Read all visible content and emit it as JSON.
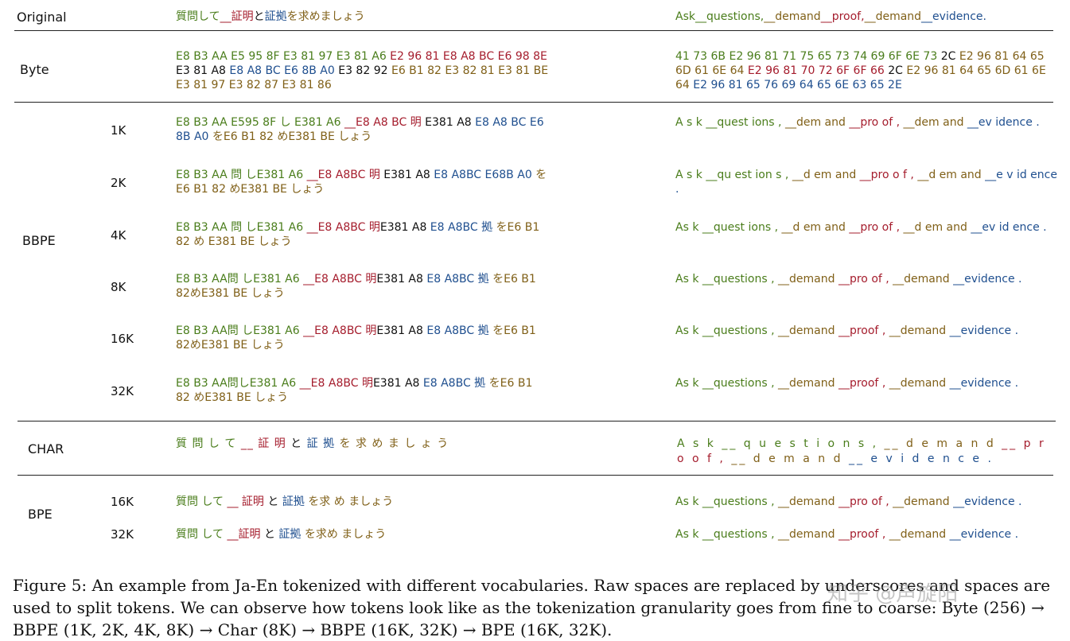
{
  "table": {
    "original_label": "Original",
    "original_ja": [
      {
        "text": "質問して",
        "c": "g"
      },
      {
        "text": "__証明",
        "c": "r"
      },
      {
        "text": "と",
        "c": "k"
      },
      {
        "text": "証拠",
        "c": "b"
      },
      {
        "text": "を求めましょう",
        "c": "o"
      }
    ],
    "original_en": [
      {
        "text": "Ask",
        "c": "g"
      },
      {
        "text": "__questions,",
        "c": "g"
      },
      {
        "text": "__demand",
        "c": "o"
      },
      {
        "text": "__proof,",
        "c": "r"
      },
      {
        "text": "__demand",
        "c": "o"
      },
      {
        "text": "__evidence.",
        "c": "b"
      }
    ],
    "byte_label": "Byte",
    "byte_ja": [
      {
        "text": "E8 B3 AA E5 95 8F E3 81 97 E3 81 A6 ",
        "c": "g"
      },
      {
        "text": "E2 96 81 E8 A8 BC E6 98 8E",
        "c": "r"
      },
      {
        "text": " E3 81 A8 ",
        "c": "k"
      },
      {
        "text": "E8 A8 BC E6 8B A0",
        "c": "b"
      },
      {
        "text": " E3 82 92 ",
        "c": "k"
      },
      {
        "text": "E6 B1 82 E3 82 81 E3 81 BE E3 81 97 E3 82 87 E3 81 86",
        "c": "o"
      }
    ],
    "byte_en": [
      {
        "text": "41 73 6B E2 96 81 71 75 65 73 74 69 6F 6E 73 ",
        "c": "g"
      },
      {
        "text": "2C ",
        "c": "k"
      },
      {
        "text": "E2 96 81 64 65 6D 61 6E 64 ",
        "c": "o"
      },
      {
        "text": "E2 96 81 70 72 6F 6F 66 ",
        "c": "r"
      },
      {
        "text": "2C ",
        "c": "k"
      },
      {
        "text": "E2 96 81 64 65 6D 61 6E 64 ",
        "c": "o"
      },
      {
        "text": "E2 96 81 65 76 69 64 65 6E 63 65 2E",
        "c": "b"
      }
    ],
    "bbpe_label": "BBPE",
    "bbpe_rows": [
      {
        "size": "1K",
        "ja": [
          {
            "text": "E8 B3 AA E595 8F し E381 A6 ",
            "c": "g"
          },
          {
            "text": "__E8 A8 BC 明 ",
            "c": "r"
          },
          {
            "text": "E381 A8 ",
            "c": "k"
          },
          {
            "text": "E8 A8 BC E6 8B A0 ",
            "c": "b"
          },
          {
            "text": "をE6 B1 82 めE381 BE しょう",
            "c": "o"
          }
        ],
        "en": [
          {
            "text": "A s k ",
            "c": "g"
          },
          {
            "text": "__quest ions , ",
            "c": "g"
          },
          {
            "text": "__dem and ",
            "c": "o"
          },
          {
            "text": "__pro of , ",
            "c": "r"
          },
          {
            "text": "__dem and ",
            "c": "o"
          },
          {
            "text": "__ev idence .",
            "c": "b"
          }
        ]
      },
      {
        "size": "2K",
        "ja": [
          {
            "text": "E8 B3 AA 問 しE381 A6 ",
            "c": "g"
          },
          {
            "text": "__E8 A8BC 明 ",
            "c": "r"
          },
          {
            "text": "E381 A8 ",
            "c": "k"
          },
          {
            "text": "E8 A8BC E68B A0 ",
            "c": "b"
          },
          {
            "text": "を E6 B1 82 めE381 BE しょう",
            "c": "o"
          }
        ],
        "en": [
          {
            "text": "A s k ",
            "c": "g"
          },
          {
            "text": "__qu est ion s , ",
            "c": "g"
          },
          {
            "text": "__d em and ",
            "c": "o"
          },
          {
            "text": "__pro o f , ",
            "c": "r"
          },
          {
            "text": "__d em and ",
            "c": "o"
          },
          {
            "text": "__e v id ence .",
            "c": "b"
          }
        ]
      },
      {
        "size": "4K",
        "ja": [
          {
            "text": "E8 B3 AA 問 しE381 A6 ",
            "c": "g"
          },
          {
            "text": "__E8 A8BC 明",
            "c": "r"
          },
          {
            "text": "E381 A8 ",
            "c": "k"
          },
          {
            "text": "E8 A8BC 拠 ",
            "c": "b"
          },
          {
            "text": "をE6 B1 82 め E381 BE しょう",
            "c": "o"
          }
        ],
        "en": [
          {
            "text": "As k ",
            "c": "g"
          },
          {
            "text": "__quest ions , ",
            "c": "g"
          },
          {
            "text": "__d em and ",
            "c": "o"
          },
          {
            "text": "__pro of , ",
            "c": "r"
          },
          {
            "text": "__d em and ",
            "c": "o"
          },
          {
            "text": "__ev id ence .",
            "c": "b"
          }
        ]
      },
      {
        "size": "8K",
        "ja": [
          {
            "text": "E8 B3 AA問 しE381 A6 ",
            "c": "g"
          },
          {
            "text": "__E8 A8BC 明",
            "c": "r"
          },
          {
            "text": "E381 A8 ",
            "c": "k"
          },
          {
            "text": "E8 A8BC 拠 ",
            "c": "b"
          },
          {
            "text": "をE6 B1 82めE381 BE しょう",
            "c": "o"
          }
        ],
        "en": [
          {
            "text": "As k ",
            "c": "g"
          },
          {
            "text": "__questions , ",
            "c": "g"
          },
          {
            "text": "__demand ",
            "c": "o"
          },
          {
            "text": "__pro of , ",
            "c": "r"
          },
          {
            "text": "__demand ",
            "c": "o"
          },
          {
            "text": "__evidence .",
            "c": "b"
          }
        ]
      },
      {
        "size": "16K",
        "ja": [
          {
            "text": "E8 B3 AA問 しE381 A6 ",
            "c": "g"
          },
          {
            "text": "__E8 A8BC 明",
            "c": "r"
          },
          {
            "text": "E381 A8 ",
            "c": "k"
          },
          {
            "text": "E8 A8BC 拠 ",
            "c": "b"
          },
          {
            "text": "をE6 B1 82めE381 BE しょう",
            "c": "o"
          }
        ],
        "en": [
          {
            "text": "As k ",
            "c": "g"
          },
          {
            "text": "__questions , ",
            "c": "g"
          },
          {
            "text": "__demand ",
            "c": "o"
          },
          {
            "text": "__proof , ",
            "c": "r"
          },
          {
            "text": "__demand ",
            "c": "o"
          },
          {
            "text": "__evidence .",
            "c": "b"
          }
        ]
      },
      {
        "size": "32K",
        "ja": [
          {
            "text": "E8 B3 AA問しE381 A6 ",
            "c": "g"
          },
          {
            "text": "__E8 A8BC 明",
            "c": "r"
          },
          {
            "text": "E381 A8 ",
            "c": "k"
          },
          {
            "text": "E8 A8BC 拠 ",
            "c": "b"
          },
          {
            "text": "をE6 B1 82 めE381 BE しょう",
            "c": "o"
          }
        ],
        "en": [
          {
            "text": "As k ",
            "c": "g"
          },
          {
            "text": "__questions , ",
            "c": "g"
          },
          {
            "text": "__demand ",
            "c": "o"
          },
          {
            "text": "__proof , ",
            "c": "r"
          },
          {
            "text": "__demand ",
            "c": "o"
          },
          {
            "text": "__evidence .",
            "c": "b"
          }
        ]
      }
    ],
    "char_label": "CHAR",
    "char_ja": [
      {
        "text": "質 問 し て ",
        "c": "g"
      },
      {
        "text": "__ 証 明 ",
        "c": "r"
      },
      {
        "text": "と ",
        "c": "k"
      },
      {
        "text": "証 拠 ",
        "c": "b"
      },
      {
        "text": "を 求 め ま し ょ う",
        "c": "o"
      }
    ],
    "char_en": [
      {
        "text": "A s k ",
        "c": "g"
      },
      {
        "text": "__ q u e s t i o n s , ",
        "c": "g"
      },
      {
        "text": "__ d e m a n d ",
        "c": "o"
      },
      {
        "text": "__ p r o o f , ",
        "c": "r"
      },
      {
        "text": "__ d e m a n d ",
        "c": "o"
      },
      {
        "text": "__ e v i d e n c e .",
        "c": "b"
      }
    ],
    "bpe_label": "BPE",
    "bpe_rows": [
      {
        "size": "16K",
        "ja": [
          {
            "text": "質問 して ",
            "c": "g"
          },
          {
            "text": "__ 証明 ",
            "c": "r"
          },
          {
            "text": "と ",
            "c": "k"
          },
          {
            "text": "証拠 ",
            "c": "b"
          },
          {
            "text": "を求 め ましょう",
            "c": "o"
          }
        ],
        "en": [
          {
            "text": "As k ",
            "c": "g"
          },
          {
            "text": "__questions , ",
            "c": "g"
          },
          {
            "text": "__demand ",
            "c": "o"
          },
          {
            "text": "__pro of , ",
            "c": "r"
          },
          {
            "text": "__demand ",
            "c": "o"
          },
          {
            "text": "__evidence .",
            "c": "b"
          }
        ]
      },
      {
        "size": "32K",
        "ja": [
          {
            "text": "質問 して ",
            "c": "g"
          },
          {
            "text": "__証明 ",
            "c": "r"
          },
          {
            "text": "と ",
            "c": "k"
          },
          {
            "text": "証拠 ",
            "c": "b"
          },
          {
            "text": "を求め ましょう",
            "c": "o"
          }
        ],
        "en": [
          {
            "text": "As k ",
            "c": "g"
          },
          {
            "text": "__questions , ",
            "c": "g"
          },
          {
            "text": "__demand ",
            "c": "o"
          },
          {
            "text": "__proof , ",
            "c": "r"
          },
          {
            "text": "__demand ",
            "c": "o"
          },
          {
            "text": "__evidence .",
            "c": "b"
          }
        ]
      }
    ]
  },
  "caption": "Figure 5: An example from Ja-En tokenized with different vocabularies. Raw spaces are replaced by underscores and spaces are used to split tokens. We can observe how tokens look like as the tokenization granularity goes from fine to coarse: Byte (256) → BBPE (1K, 2K, 4K, 8K) → Char (8K) → BBPE (16K, 32K) → BPE (16K, 32K).",
  "watermark": "知乎 @声旋阳"
}
